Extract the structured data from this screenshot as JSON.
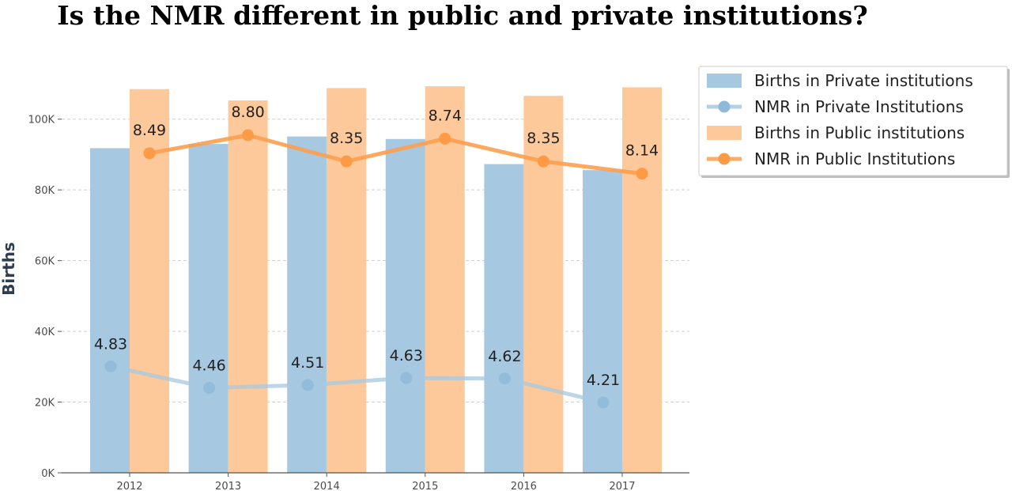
{
  "chart_data": {
    "type": "bar",
    "title": "Is the NMR different in public and private institutions?",
    "ylabel": "Births",
    "xlabel": "",
    "categories": [
      "2012",
      "2013",
      "2014",
      "2015",
      "2016",
      "2017"
    ],
    "ylim": [
      0,
      110000
    ],
    "yticks": [
      0,
      20000,
      40000,
      60000,
      80000,
      100000
    ],
    "ytick_labels": [
      "0K",
      "20K",
      "40K",
      "60K",
      "80K",
      "100K"
    ],
    "grid": "horizontal-dashed",
    "legend_position": "top-right (outside plot)",
    "series": [
      {
        "name": "Births in Private institutions",
        "kind": "bar",
        "color": "#a6c8e0",
        "values": [
          91800,
          93000,
          95100,
          94400,
          87300,
          85600
        ]
      },
      {
        "name": "NMR in Private Institutions",
        "kind": "line",
        "color": "#a6c8e0",
        "values": [
          4.83,
          4.46,
          4.51,
          4.63,
          4.62,
          4.21
        ],
        "labels": [
          "4.83",
          "4.46",
          "4.51",
          "4.63",
          "4.62",
          "4.21"
        ]
      },
      {
        "name": "Births in Public institutions",
        "kind": "bar",
        "color": "#fdc99a",
        "values": [
          108500,
          105300,
          108800,
          109300,
          106600,
          109000
        ]
      },
      {
        "name": "NMR in Public Institutions",
        "kind": "line",
        "color": "#fd9e4f",
        "values": [
          8.49,
          8.8,
          8.35,
          8.74,
          8.35,
          8.14
        ],
        "labels": [
          "8.49",
          "8.80",
          "8.35",
          "8.74",
          "8.35",
          "8.14"
        ]
      }
    ]
  }
}
